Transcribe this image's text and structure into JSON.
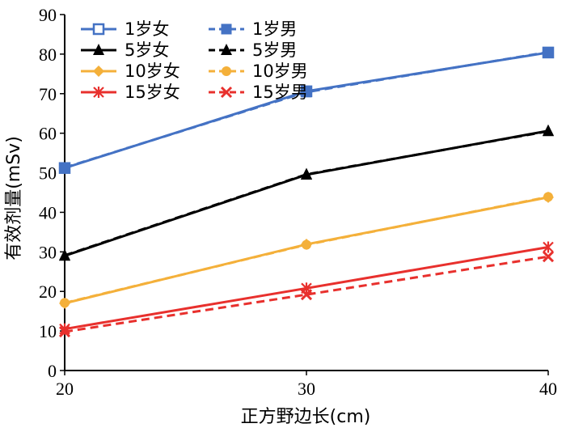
{
  "chart_data": {
    "type": "line",
    "title": "",
    "xlabel": "正方野边长(cm)",
    "ylabel": "有效剂量(mSv)",
    "x": [
      20,
      30,
      40
    ],
    "xlim": [
      20,
      40
    ],
    "ylim": [
      0,
      90
    ],
    "xticks": [
      "20",
      "30",
      "40"
    ],
    "yticks": [
      "0",
      "10",
      "20",
      "30",
      "40",
      "50",
      "60",
      "70",
      "80",
      "90"
    ],
    "grid": false,
    "legend_position": "top-left",
    "series": [
      {
        "name": "1岁女",
        "color": "#4472C4",
        "dash": false,
        "marker": "square-open",
        "values": [
          51.2,
          70.6,
          80.4
        ]
      },
      {
        "name": "1岁男",
        "color": "#4472C4",
        "dash": true,
        "marker": "square",
        "values": [
          51.3,
          70.4,
          80.5
        ]
      },
      {
        "name": "5岁女",
        "color": "#000000",
        "dash": false,
        "marker": "triangle",
        "values": [
          29.0,
          49.5,
          60.6
        ]
      },
      {
        "name": "5岁男",
        "color": "#000000",
        "dash": true,
        "marker": "triangle",
        "values": [
          29.1,
          49.6,
          60.5
        ]
      },
      {
        "name": "10岁女",
        "color": "#F4B03A",
        "dash": false,
        "marker": "diamond",
        "values": [
          17.0,
          31.9,
          43.8
        ]
      },
      {
        "name": "10岁男",
        "color": "#F4B03A",
        "dash": true,
        "marker": "circle",
        "values": [
          17.1,
          31.8,
          43.9
        ]
      },
      {
        "name": "15岁女",
        "color": "#E8302D",
        "dash": false,
        "marker": "star",
        "values": [
          10.5,
          20.8,
          31.2
        ]
      },
      {
        "name": "15岁男",
        "color": "#E8302D",
        "dash": true,
        "marker": "x",
        "values": [
          9.8,
          19.2,
          28.8
        ]
      }
    ]
  }
}
